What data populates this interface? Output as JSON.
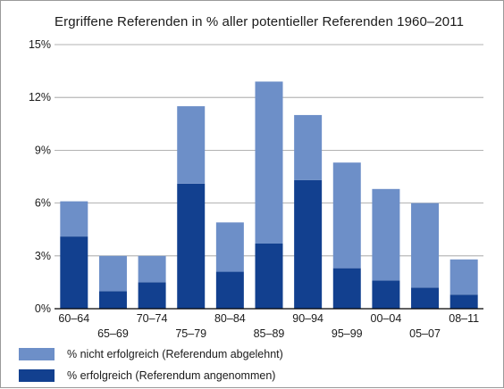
{
  "chart_data": {
    "type": "bar",
    "stacked": true,
    "title": "Ergriffene Referenden in % aller potentieller Referenden 1960–2011",
    "xlabel": "",
    "ylabel": "",
    "ylim": [
      0,
      15
    ],
    "y_ticks": [
      "0%",
      "3%",
      "6%",
      "9%",
      "12%",
      "15%"
    ],
    "y_tick_values": [
      0,
      3,
      6,
      9,
      12,
      15
    ],
    "grid": "horizontal",
    "categories": [
      "60–64",
      "65–69",
      "70–74",
      "75–79",
      "80–84",
      "85–89",
      "90–94",
      "95–99",
      "00–04",
      "05–07",
      "08–11"
    ],
    "label_row": [
      "top",
      "bottom",
      "top",
      "bottom",
      "top",
      "bottom",
      "top",
      "bottom",
      "top",
      "bottom",
      "top"
    ],
    "series": [
      {
        "name": "% erfolgreich (Referendum angenommen)",
        "color": "#12408f",
        "values": [
          4.1,
          1.0,
          1.5,
          7.1,
          2.1,
          3.7,
          7.3,
          2.3,
          1.6,
          1.2,
          0.8
        ]
      },
      {
        "name": "% nicht erfolgreich (Referendum abgelehnt)",
        "color": "#6d8fc8",
        "values": [
          2.0,
          2.0,
          1.5,
          4.4,
          2.8,
          9.2,
          3.7,
          6.0,
          5.2,
          4.8,
          2.0
        ]
      }
    ],
    "legend": {
      "position": "bottom-left",
      "order": [
        1,
        0
      ]
    },
    "colors": {
      "grid": "#9a9a9a",
      "axis": "#000000",
      "text": "#1a1a1a"
    }
  }
}
